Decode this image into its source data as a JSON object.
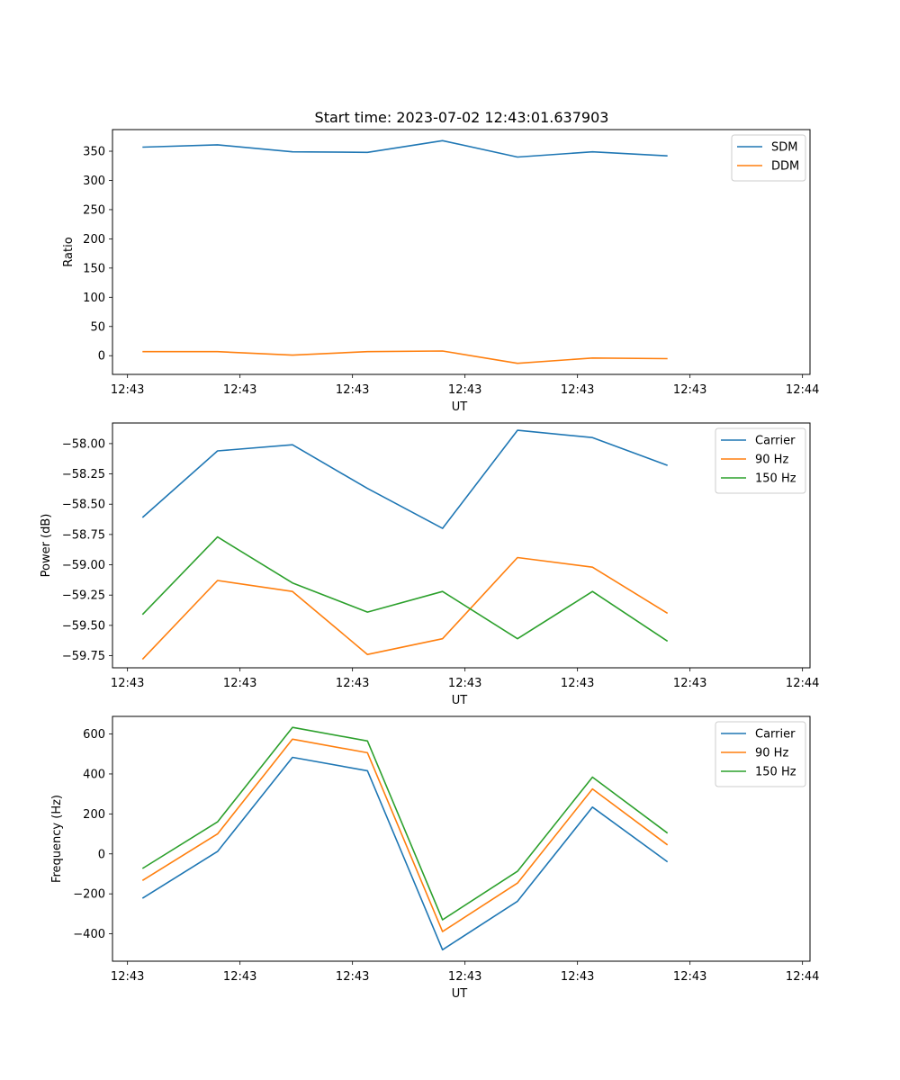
{
  "figure_title": "Start time: 2023-07-02 12:43:01.637903",
  "chart_data": [
    {
      "type": "line",
      "title": "Start time: 2023-07-02 12:43:01.637903",
      "xlabel": "UT",
      "ylabel": "Ratio",
      "xlim": [
        -0.4,
        8.9
      ],
      "ylim": [
        -32,
        387
      ],
      "yticks": [
        0,
        50,
        100,
        150,
        200,
        250,
        300,
        350
      ],
      "ytick_labels": [
        "0",
        "50",
        "100",
        "150",
        "200",
        "250",
        "300",
        "350"
      ],
      "xticks": [
        -0.2,
        1.3,
        2.8,
        4.3,
        5.8,
        7.3,
        8.8
      ],
      "xtick_labels": [
        "12:43",
        "12:43",
        "12:43",
        "12:43",
        "12:43",
        "12:43",
        "12:44"
      ],
      "x": [
        0,
        1,
        2,
        3,
        4,
        5,
        6,
        7
      ],
      "legend_position": "top-right",
      "series": [
        {
          "name": "SDM",
          "color": "#1f77b4",
          "values": [
            357,
            361,
            349,
            348,
            368,
            340,
            349,
            342
          ]
        },
        {
          "name": "DDM",
          "color": "#ff7f0e",
          "values": [
            7,
            7,
            1,
            7,
            8,
            -13,
            -4,
            -5
          ]
        }
      ]
    },
    {
      "type": "line",
      "title": "",
      "xlabel": "UT",
      "ylabel": "Power (dB)",
      "xlim": [
        -0.4,
        8.9
      ],
      "ylim": [
        -59.85,
        -57.83
      ],
      "yticks": [
        -59.75,
        -59.5,
        -59.25,
        -59.0,
        -58.75,
        -58.5,
        -58.25,
        -58.0
      ],
      "ytick_labels": [
        "−59.75",
        "−59.50",
        "−59.25",
        "−59.00",
        "−58.75",
        "−58.50",
        "−58.25",
        "−58.00"
      ],
      "xticks": [
        -0.2,
        1.3,
        2.8,
        4.3,
        5.8,
        7.3,
        8.8
      ],
      "xtick_labels": [
        "12:43",
        "12:43",
        "12:43",
        "12:43",
        "12:43",
        "12:43",
        "12:44"
      ],
      "x": [
        0,
        1,
        2,
        3,
        4,
        5,
        6,
        7
      ],
      "legend_position": "top-right",
      "series": [
        {
          "name": "Carrier",
          "color": "#1f77b4",
          "values": [
            -58.61,
            -58.06,
            -58.01,
            -58.37,
            -58.7,
            -57.89,
            -57.95,
            -58.18
          ]
        },
        {
          "name": "90 Hz",
          "color": "#ff7f0e",
          "values": [
            -59.78,
            -59.13,
            -59.22,
            -59.74,
            -59.61,
            -58.94,
            -59.02,
            -59.4
          ]
        },
        {
          "name": "150 Hz",
          "color": "#2ca02c",
          "values": [
            -59.41,
            -58.77,
            -59.15,
            -59.39,
            -59.22,
            -59.61,
            -59.22,
            -59.63
          ]
        }
      ]
    },
    {
      "type": "line",
      "title": "",
      "xlabel": "UT",
      "ylabel": "Frequency (Hz)",
      "xlim": [
        -0.4,
        8.9
      ],
      "ylim": [
        -537,
        688
      ],
      "yticks": [
        -400,
        -200,
        0,
        200,
        400,
        600
      ],
      "ytick_labels": [
        "−400",
        "−200",
        "0",
        "200",
        "400",
        "600"
      ],
      "xticks": [
        -0.2,
        1.3,
        2.8,
        4.3,
        5.8,
        7.3,
        8.8
      ],
      "xtick_labels": [
        "12:43",
        "12:43",
        "12:43",
        "12:43",
        "12:43",
        "12:43",
        "12:44"
      ],
      "x": [
        0,
        1,
        2,
        3,
        4,
        5,
        6,
        7
      ],
      "legend_position": "top-right",
      "series": [
        {
          "name": "Carrier",
          "color": "#1f77b4",
          "values": [
            -222,
            12,
            483,
            416,
            -480,
            -237,
            234,
            -40
          ]
        },
        {
          "name": "90 Hz",
          "color": "#ff7f0e",
          "values": [
            -133,
            100,
            574,
            506,
            -389,
            -146,
            325,
            45
          ]
        },
        {
          "name": "150 Hz",
          "color": "#2ca02c",
          "values": [
            -73,
            160,
            633,
            565,
            -330,
            -87,
            384,
            104
          ]
        }
      ]
    }
  ]
}
